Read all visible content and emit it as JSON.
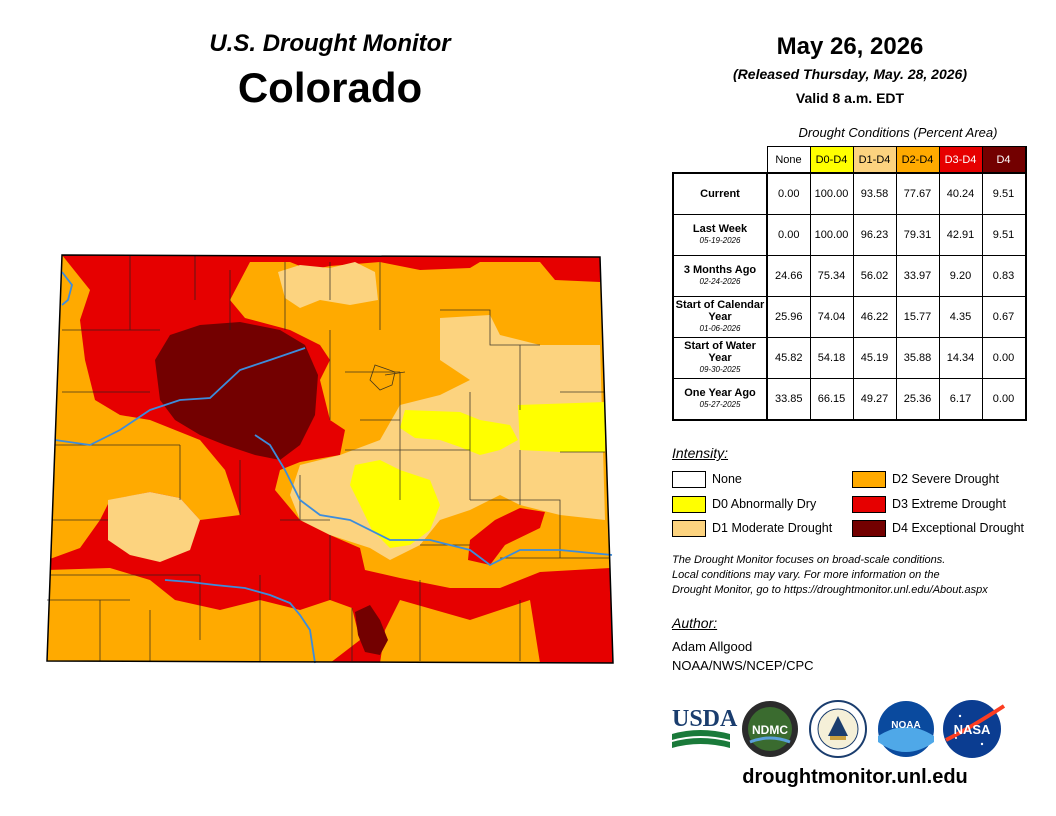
{
  "header": {
    "subtitle": "U.S. Drought Monitor",
    "state": "Colorado"
  },
  "date_block": {
    "date": "May 26, 2026",
    "released": "(Released Thursday, May. 28, 2026)",
    "valid": "Valid 8 a.m. EDT"
  },
  "table": {
    "caption": "Drought Conditions (Percent Area)",
    "columns": [
      "None",
      "D0-D4",
      "D1-D4",
      "D2-D4",
      "D3-D4",
      "D4"
    ],
    "rows": [
      {
        "label": "Current",
        "date": "",
        "values": [
          "0.00",
          "100.00",
          "93.58",
          "77.67",
          "40.24",
          "9.51"
        ]
      },
      {
        "label": "Last Week",
        "date": "05-19-2026",
        "values": [
          "0.00",
          "100.00",
          "96.23",
          "79.31",
          "42.91",
          "9.51"
        ]
      },
      {
        "label": "3 Months Ago",
        "date": "02-24-2026",
        "values": [
          "24.66",
          "75.34",
          "56.02",
          "33.97",
          "9.20",
          "0.83"
        ]
      },
      {
        "label": "Start of Calendar Year",
        "date": "01-06-2026",
        "values": [
          "25.96",
          "74.04",
          "46.22",
          "15.77",
          "4.35",
          "0.67"
        ]
      },
      {
        "label": "Start of Water Year",
        "date": "09-30-2025",
        "values": [
          "45.82",
          "54.18",
          "45.19",
          "35.88",
          "14.34",
          "0.00"
        ]
      },
      {
        "label": "One Year Ago",
        "date": "05-27-2025",
        "values": [
          "33.85",
          "66.15",
          "49.27",
          "25.36",
          "6.17",
          "0.00"
        ]
      }
    ]
  },
  "legend": {
    "title": "Intensity:",
    "items": [
      {
        "label": "None",
        "color": "#ffffff"
      },
      {
        "label": "D0 Abnormally Dry",
        "color": "#ffff00"
      },
      {
        "label": "D1 Moderate Drought",
        "color": "#fcd37f"
      },
      {
        "label": "D2 Severe Drought",
        "color": "#ffaa00"
      },
      {
        "label": "D3 Extreme Drought",
        "color": "#e60000"
      },
      {
        "label": "D4 Exceptional Drought",
        "color": "#730000"
      }
    ]
  },
  "note": {
    "line1": "The Drought Monitor focuses on broad-scale conditions.",
    "line2": "Local conditions may vary. For more information on the",
    "line3": "Drought Monitor, go to https://droughtmonitor.unl.edu/About.aspx"
  },
  "author": {
    "title": "Author:",
    "name": "Adam Allgood",
    "org": "NOAA/NWS/NCEP/CPC"
  },
  "logos": {
    "usda": "USDA",
    "ndmc": "NDMC",
    "noaa": "NOAA",
    "nasa": "NASA"
  },
  "url": "droughtmonitor.unl.edu",
  "colors": {
    "none": "#ffffff",
    "d0": "#ffff00",
    "d1": "#fcd37f",
    "d2": "#ffaa00",
    "d3": "#e60000",
    "d4": "#730000",
    "river": "#3c8cdc"
  }
}
